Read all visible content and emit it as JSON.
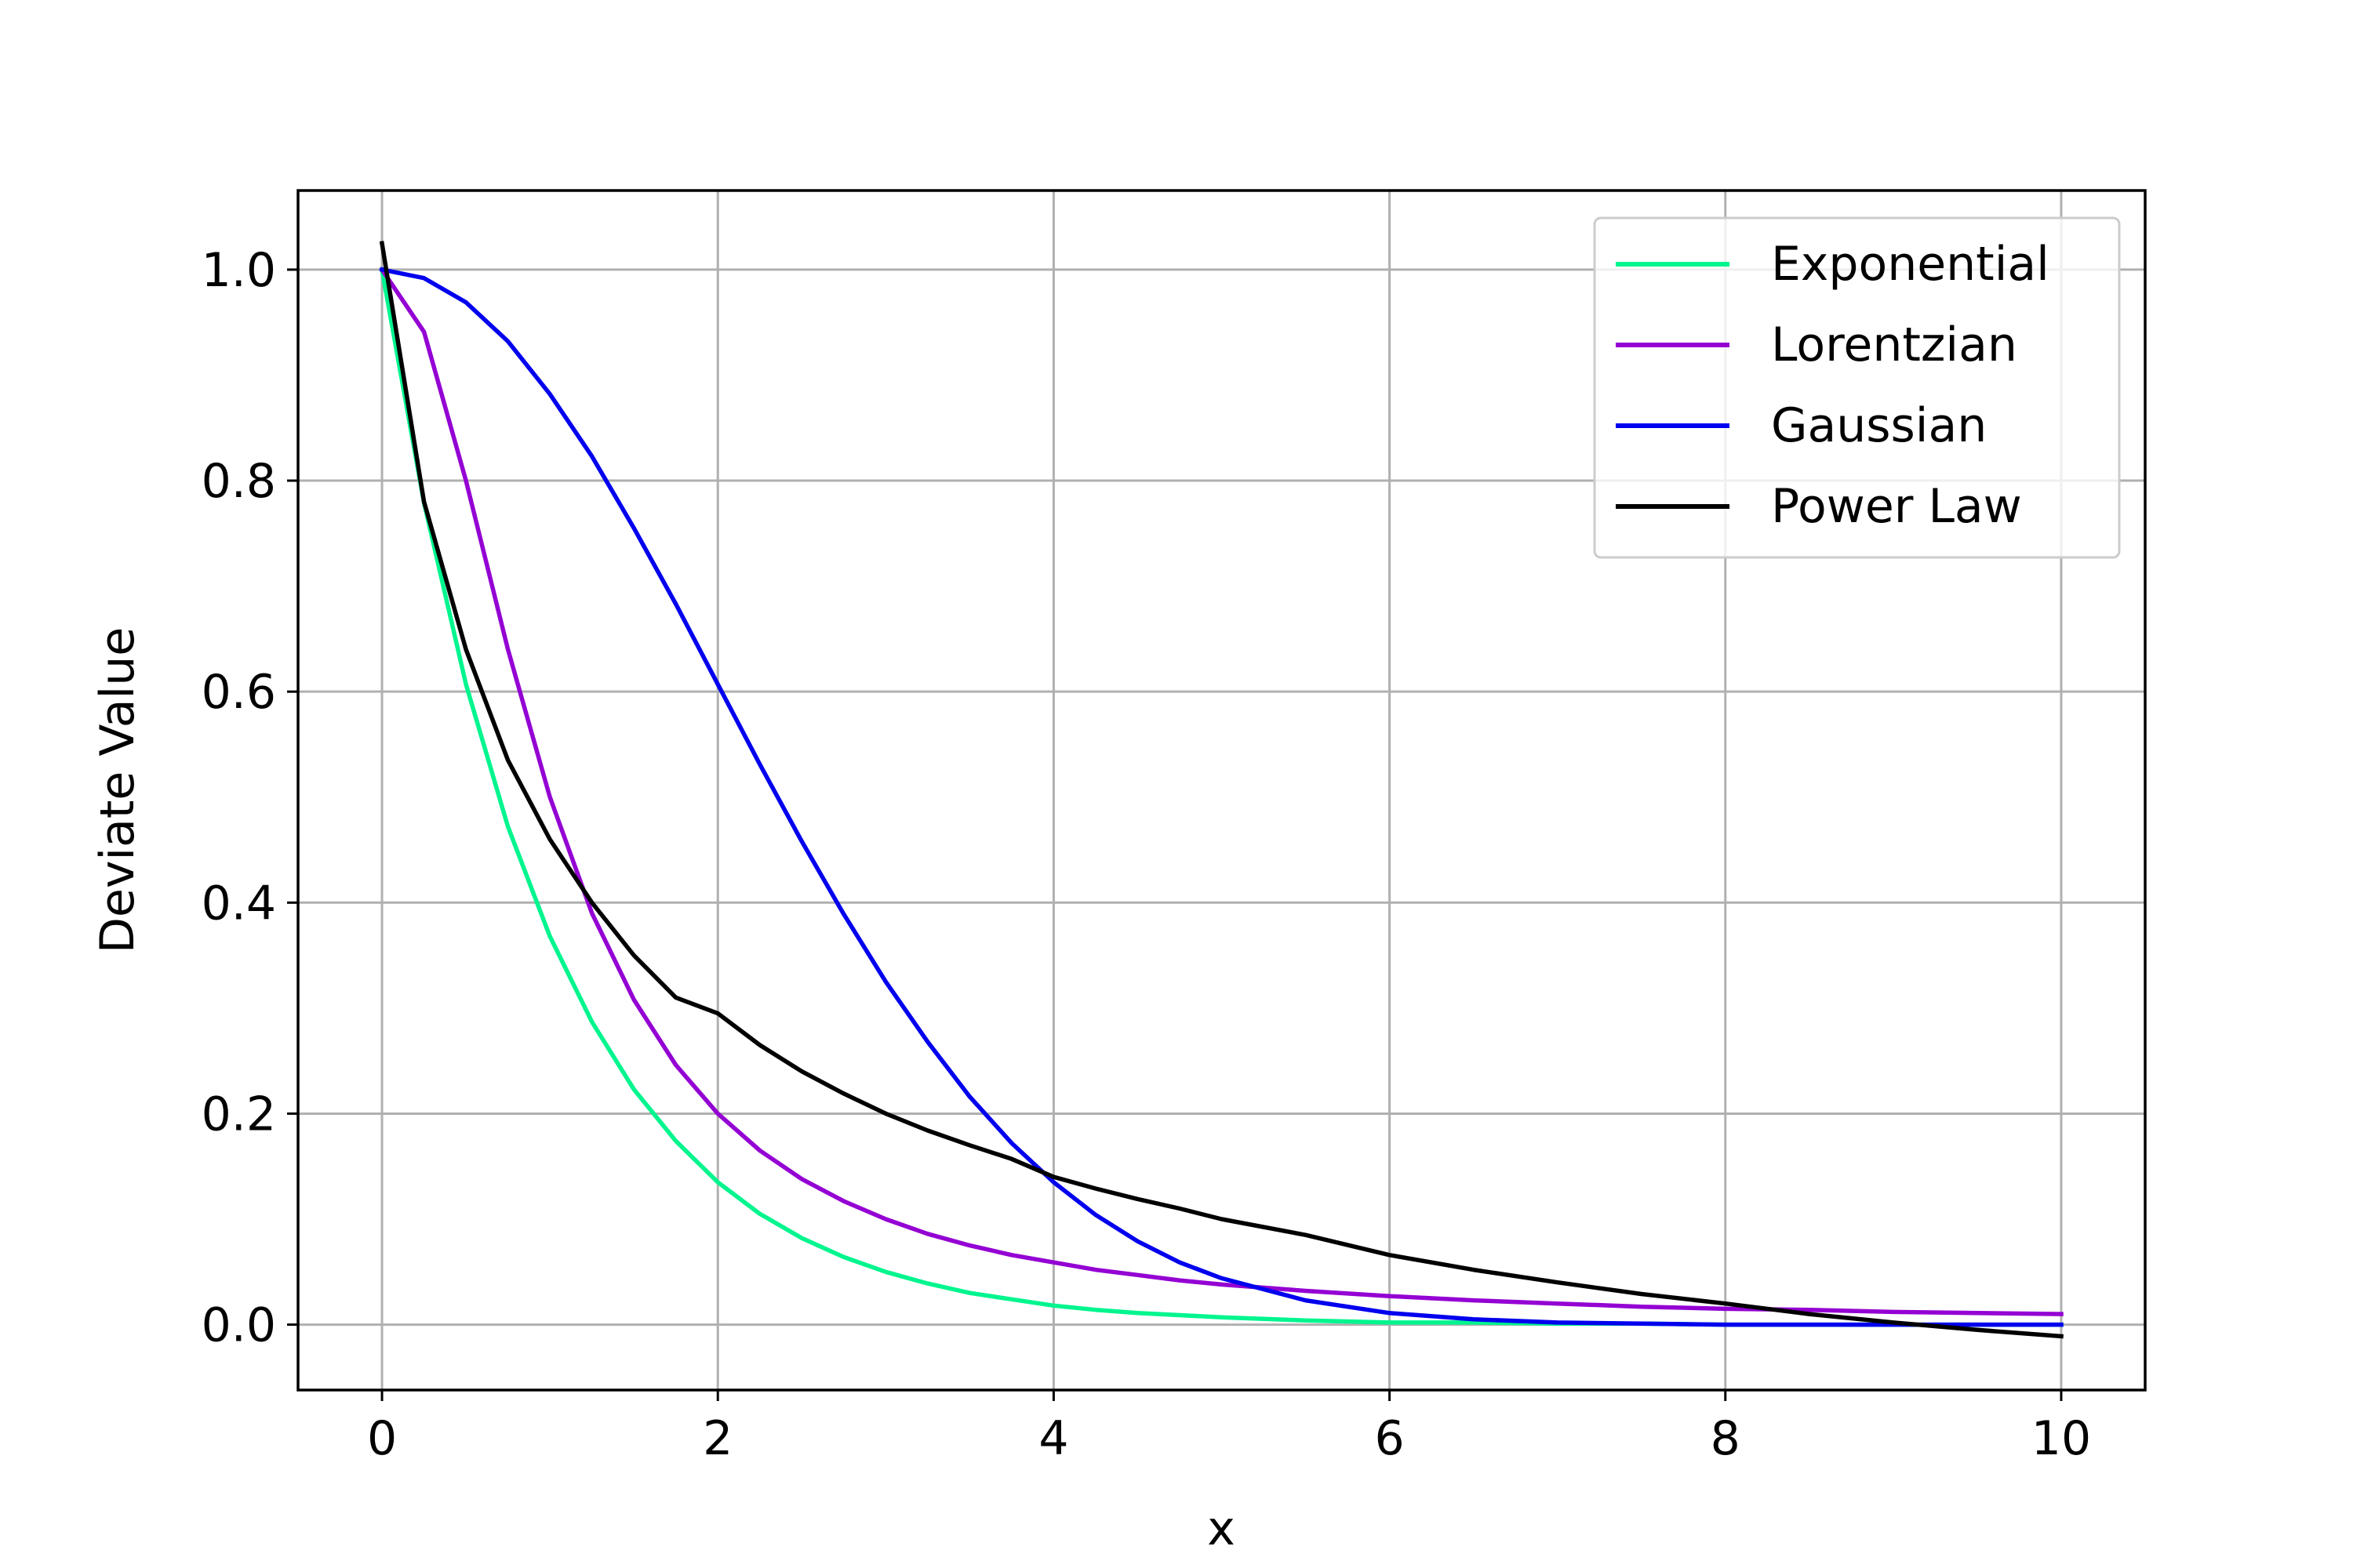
{
  "chart_data": {
    "type": "line",
    "title": "",
    "xlabel": "x",
    "ylabel": "Deviate Value",
    "xlim": [
      -0.5,
      10.5
    ],
    "ylim": [
      -0.062,
      1.075
    ],
    "x_ticks": [
      0,
      2,
      4,
      6,
      8,
      10
    ],
    "x_tick_labels": [
      "0",
      "2",
      "4",
      "6",
      "8",
      "10"
    ],
    "y_ticks": [
      0.0,
      0.2,
      0.4,
      0.6,
      0.8,
      1.0
    ],
    "y_tick_labels": [
      "0.0",
      "0.2",
      "0.4",
      "0.6",
      "0.8",
      "1.0"
    ],
    "grid": true,
    "legend_position": "top-right",
    "x": [
      0,
      0.25,
      0.5,
      0.75,
      1,
      1.25,
      1.5,
      1.75,
      2,
      2.25,
      2.5,
      2.75,
      3,
      3.25,
      3.5,
      3.75,
      4,
      4.25,
      4.5,
      4.75,
      5,
      5.5,
      6,
      6.5,
      7,
      7.5,
      8,
      8.5,
      9,
      9.5,
      10
    ],
    "series": [
      {
        "name": "Exponential",
        "color": "#00f58e",
        "values": [
          1.0,
          0.779,
          0.607,
          0.472,
          0.368,
          0.287,
          0.223,
          0.174,
          0.135,
          0.105,
          0.082,
          0.064,
          0.05,
          0.039,
          0.03,
          0.024,
          0.018,
          0.014,
          0.011,
          0.009,
          0.007,
          0.004,
          0.002,
          0.002,
          0.001,
          0.001,
          0.0,
          0.0,
          0.0,
          0.0,
          0.0
        ]
      },
      {
        "name": "Lorentzian",
        "color": "#9400d3",
        "values": [
          1.0,
          0.941,
          0.8,
          0.64,
          0.5,
          0.39,
          0.308,
          0.246,
          0.2,
          0.165,
          0.138,
          0.117,
          0.1,
          0.086,
          0.075,
          0.066,
          0.059,
          0.052,
          0.047,
          0.042,
          0.038,
          0.032,
          0.027,
          0.023,
          0.02,
          0.017,
          0.015,
          0.014,
          0.012,
          0.011,
          0.01
        ]
      },
      {
        "name": "Gaussian",
        "color": "#0000ee",
        "values": [
          1.0,
          0.992,
          0.969,
          0.932,
          0.882,
          0.823,
          0.755,
          0.683,
          0.607,
          0.531,
          0.458,
          0.389,
          0.325,
          0.268,
          0.216,
          0.172,
          0.135,
          0.104,
          0.079,
          0.059,
          0.044,
          0.023,
          0.011,
          0.005,
          0.002,
          0.001,
          0.0,
          0.0,
          0.0,
          0.0,
          0.0
        ]
      },
      {
        "name": "Power Law",
        "color": "#000000",
        "values": [
          1.025,
          0.78,
          0.64,
          0.535,
          0.46,
          0.4,
          0.35,
          0.31,
          0.295,
          0.265,
          0.24,
          0.219,
          0.2,
          0.184,
          0.17,
          0.157,
          0.14,
          0.129,
          0.119,
          0.11,
          0.1,
          0.085,
          0.066,
          0.052,
          0.04,
          0.029,
          0.02,
          0.01,
          0.002,
          -0.005,
          -0.011
        ]
      }
    ]
  }
}
